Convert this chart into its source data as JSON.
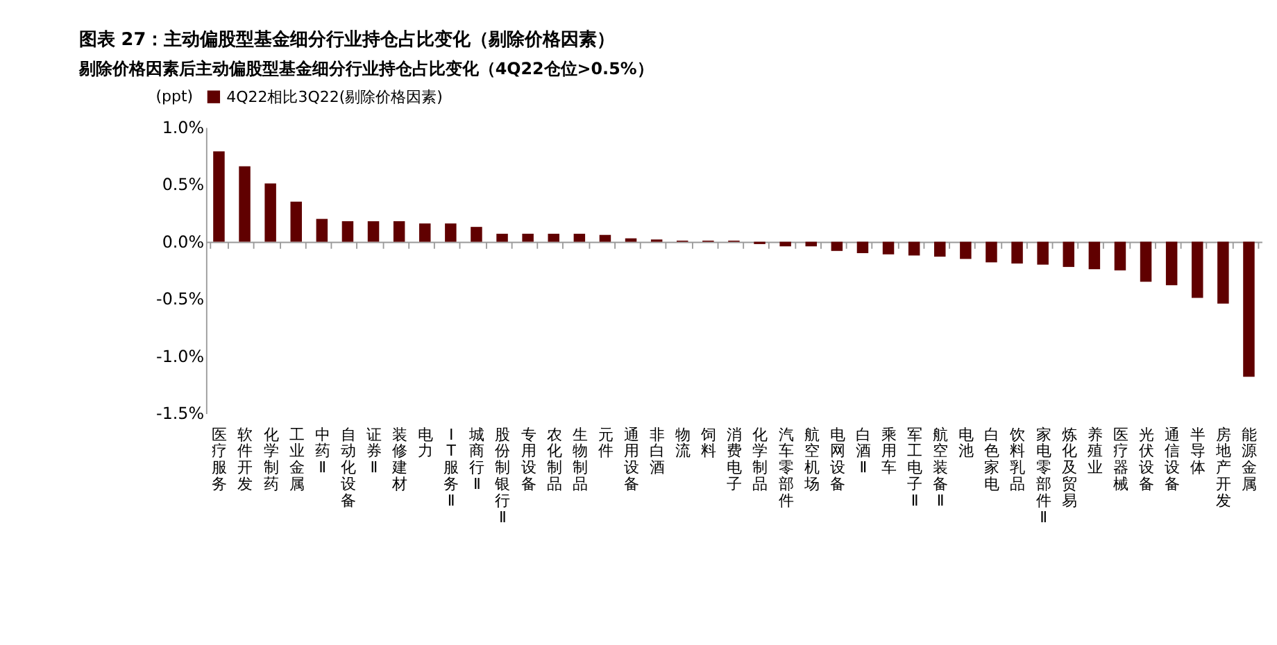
{
  "chart_data": {
    "type": "bar",
    "title": "图表 27：主动偏股型基金细分行业持仓占比变化（剔除价格因素）",
    "subtitle": "剔除价格因素后主动偏股型基金细分行业持仓占比变化（4Q22仓位>0.5%）",
    "ylabel": "(ppt)",
    "categories": [
      "医疗服务",
      "软件开发",
      "化学制药",
      "工业金属",
      "中药Ⅱ",
      "自动化设备",
      "证券Ⅱ",
      "装修建材",
      "电力",
      "IT服务Ⅱ",
      "城商行Ⅱ",
      "股份制银行Ⅱ",
      "专用设备",
      "农化制品",
      "生物制品",
      "元件",
      "通用设备",
      "非白酒",
      "物流",
      "饲料",
      "消费电子",
      "化学制品",
      "汽车零部件",
      "航空机场",
      "电网设备",
      "白酒Ⅱ",
      "乘用车",
      "军工电子Ⅱ",
      "航空装备Ⅱ",
      "电池",
      "白色家电",
      "饮料乳品",
      "家电零部件Ⅱ",
      "炼化及贸易",
      "养殖业",
      "医疗器械",
      "光伏设备",
      "通信设备",
      "半导体",
      "房地产开发",
      "能源金属"
    ],
    "series": [
      {
        "name": "4Q22相比3Q22(剔除价格因素)",
        "color": "#600000",
        "values": [
          0.79,
          0.66,
          0.51,
          0.35,
          0.2,
          0.18,
          0.18,
          0.18,
          0.16,
          0.16,
          0.13,
          0.07,
          0.07,
          0.07,
          0.07,
          0.06,
          0.03,
          0.02,
          0.01,
          0.01,
          0.01,
          -0.02,
          -0.04,
          -0.04,
          -0.08,
          -0.1,
          -0.11,
          -0.12,
          -0.13,
          -0.15,
          -0.18,
          -0.19,
          -0.2,
          -0.22,
          -0.24,
          -0.25,
          -0.35,
          -0.38,
          -0.49,
          -0.54,
          -1.18
        ]
      }
    ],
    "ylim": [
      -1.5,
      1.0
    ],
    "yticks": [
      {
        "value": -1.5,
        "label": "-1.5%"
      },
      {
        "value": -1.0,
        "label": "-1.0%"
      },
      {
        "value": -0.5,
        "label": "-0.5%"
      },
      {
        "value": 0,
        "label": "0.0%"
      },
      {
        "value": 0.5,
        "label": "0.5%"
      },
      {
        "value": 1.0,
        "label": "1.0%"
      }
    ],
    "legend": "top"
  }
}
